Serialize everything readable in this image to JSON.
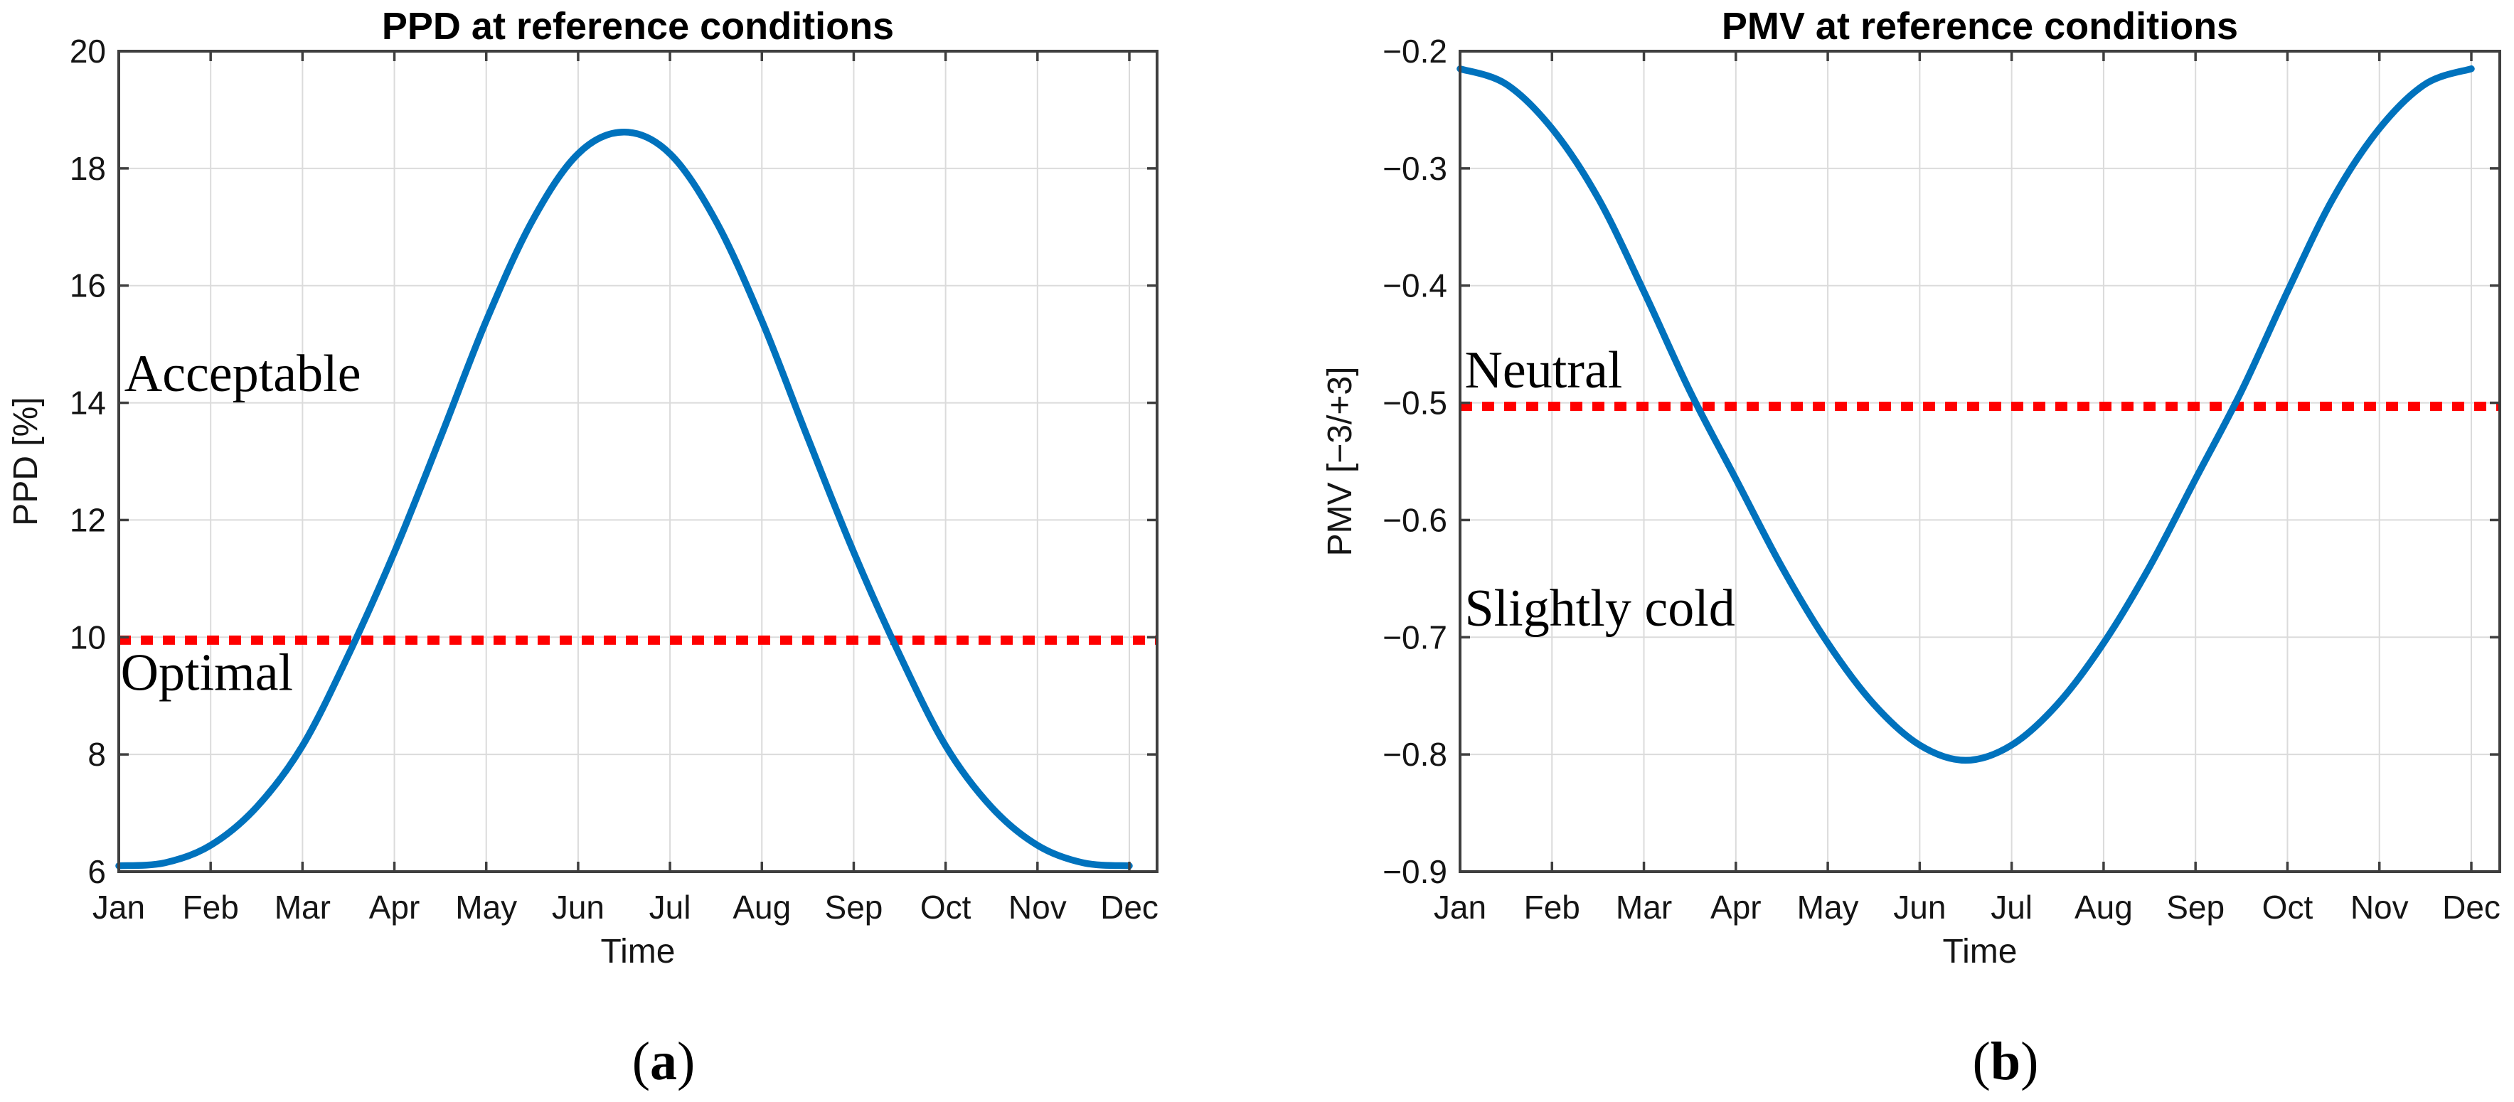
{
  "figure": {
    "background": "#ffffff",
    "description": "Two-panel line figure: PPD and PMV at reference conditions over months Jan-Dec"
  },
  "colors": {
    "series_blue": "#0072BD",
    "threshold_red": "#FF0000",
    "grid": "#DBDBDB",
    "axis": "#3F3F3F",
    "tick_text": "#151515",
    "title_text": "#000000",
    "annotation_text": "#000000"
  },
  "chart_data": {
    "type": "line",
    "figure_size": [
      3535,
      1550
    ],
    "panels": [
      {
        "id": "ppd",
        "panel_label": "(a)",
        "panel_letter": "a",
        "panel_paren_open": "(",
        "panel_paren_close": ")",
        "title": "PPD at reference conditions",
        "xlabel": "Time",
        "ylabel": "PPD [%]",
        "x_categories": [
          "Jan",
          "Feb",
          "Mar",
          "Apr",
          "May",
          "Jun",
          "Jul",
          "Aug",
          "Sep",
          "Oct",
          "Nov",
          "Dec"
        ],
        "ylim": [
          6,
          20
        ],
        "yticks": [
          6,
          8,
          10,
          12,
          14,
          16,
          18,
          20
        ],
        "ytick_labels": [
          "6",
          "8",
          "10",
          "12",
          "14",
          "16",
          "18",
          "20"
        ],
        "xlim_months": [
          0,
          11.3
        ],
        "grid": true,
        "series": [
          {
            "name": "PPD",
            "style": "solid",
            "color_key": "series_blue",
            "x_months": [
              0,
              0.5,
              1,
              1.5,
              2,
              2.5,
              3,
              3.5,
              4,
              4.5,
              5,
              5.5,
              6,
              6.5,
              7,
              7.5,
              8,
              8.5,
              9,
              9.5,
              10,
              10.5,
              11
            ],
            "values": [
              6.1,
              6.15,
              6.45,
              7.1,
              8.15,
              9.7,
              11.45,
              13.4,
              15.4,
              17.1,
              18.25,
              18.62,
              18.25,
              17.1,
              15.4,
              13.4,
              11.45,
              9.7,
              8.15,
              7.1,
              6.45,
              6.15,
              6.1
            ]
          },
          {
            "name": "threshold",
            "style": "dotted",
            "color_key": "threshold_red",
            "y": 9.95
          }
        ],
        "annotations": [
          {
            "text": "Acceptable",
            "x_month": 0.06,
            "y_baseline": 14.2
          },
          {
            "text": "Optimal",
            "x_month": 0.02,
            "y_baseline": 9.1
          }
        ]
      },
      {
        "id": "pmv",
        "panel_label": "(b)",
        "panel_letter": "b",
        "panel_paren_open": "(",
        "panel_paren_close": ")",
        "title": "PMV at reference conditions",
        "xlabel": "Time",
        "ylabel": "PMV [−3/+3]",
        "x_categories": [
          "Jan",
          "Feb",
          "Mar",
          "Apr",
          "May",
          "Jun",
          "Jul",
          "Aug",
          "Sep",
          "Oct",
          "Nov",
          "Dec"
        ],
        "ylim": [
          -0.9,
          -0.2
        ],
        "yticks": [
          -0.9,
          -0.8,
          -0.7,
          -0.6,
          -0.5,
          -0.4,
          -0.3,
          -0.2
        ],
        "ytick_labels": [
          "−0.9",
          "−0.8",
          "−0.7",
          "−0.6",
          "−0.5",
          "−0.4",
          "−0.3",
          "−0.2"
        ],
        "xlim_months": [
          0,
          11.3
        ],
        "grid": true,
        "series": [
          {
            "name": "PMV",
            "style": "solid",
            "color_key": "series_blue",
            "x_months": [
              0,
              0.5,
              1,
              1.5,
              2,
              2.5,
              3,
              3.5,
              4,
              4.5,
              5,
              5.5,
              6,
              6.5,
              7,
              7.5,
              8,
              8.5,
              9,
              9.5,
              10,
              10.5,
              11
            ],
            "values": [
              -0.215,
              -0.228,
              -0.266,
              -0.325,
              -0.405,
              -0.49,
              -0.565,
              -0.64,
              -0.705,
              -0.757,
              -0.792,
              -0.805,
              -0.792,
              -0.757,
              -0.705,
              -0.64,
              -0.565,
              -0.49,
              -0.405,
              -0.325,
              -0.266,
              -0.228,
              -0.215
            ]
          },
          {
            "name": "threshold",
            "style": "dotted",
            "color_key": "threshold_red",
            "y": -0.503
          }
        ],
        "annotations": [
          {
            "text": "Neutral",
            "x_month": 0.05,
            "y_baseline": -0.487
          },
          {
            "text": "Slightly cold",
            "x_month": 0.05,
            "y_baseline": -0.69
          }
        ]
      }
    ]
  }
}
